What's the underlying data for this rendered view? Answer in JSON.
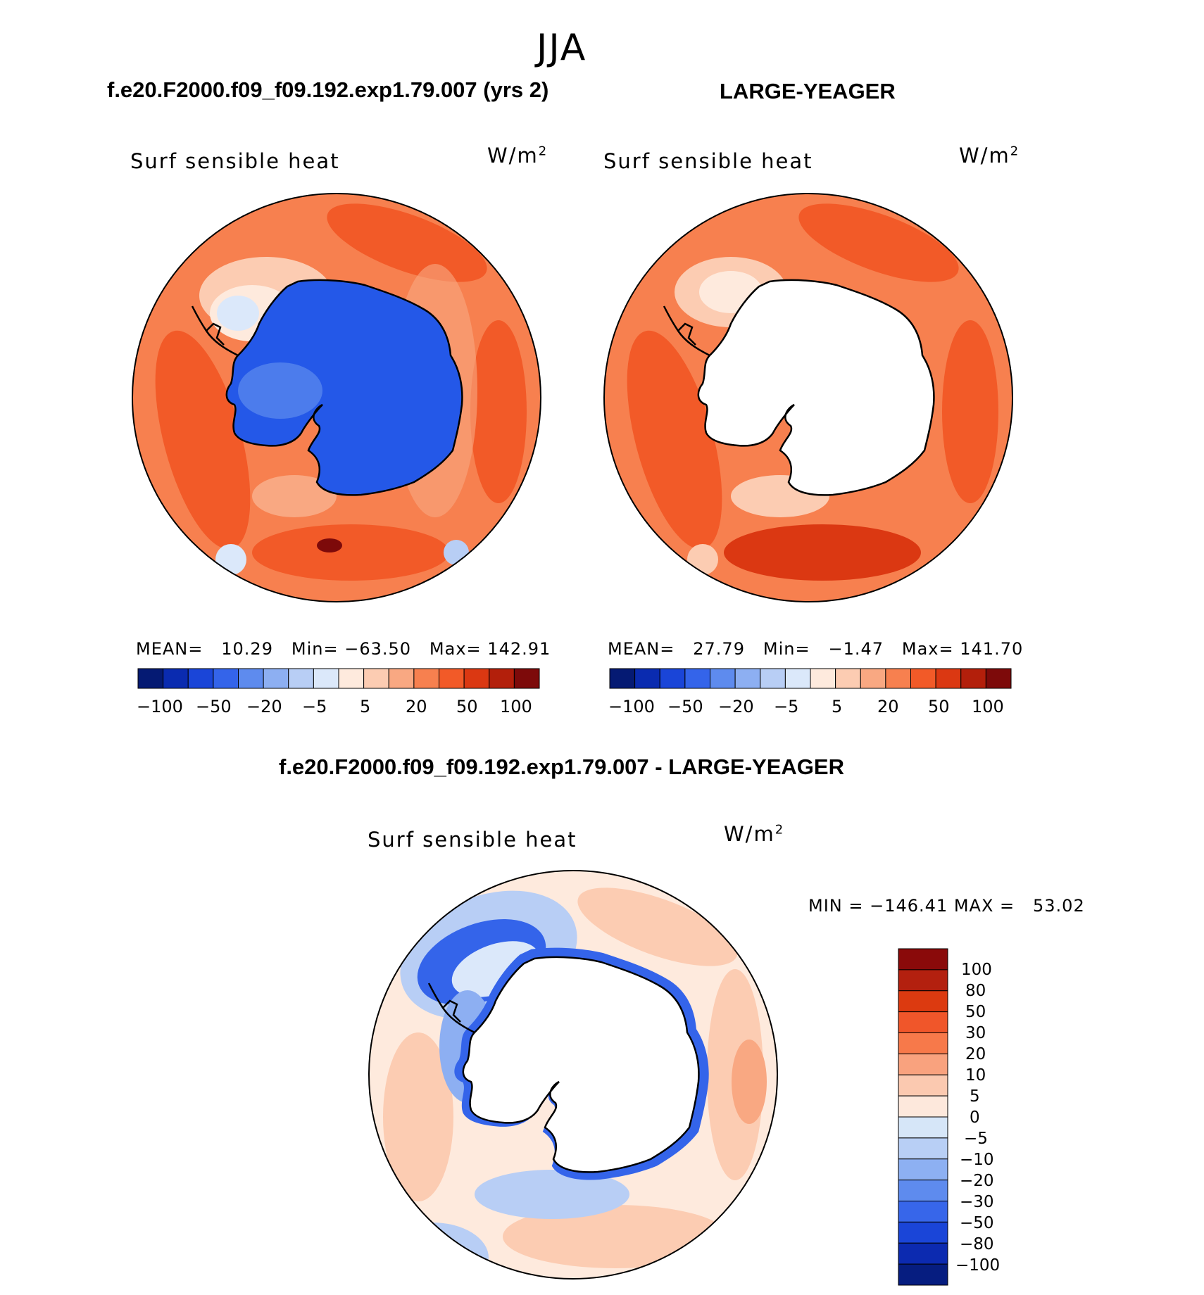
{
  "page": {
    "season_title": "JJA"
  },
  "panels": [
    {
      "case_title": "f.e20.F2000.f09_f09.192.exp1.79.007 (yrs 2)",
      "variable": "Surf sensible heat",
      "units": "W/m",
      "units_sup": "2",
      "stats": {
        "mean_label": "MEAN=",
        "mean": "10.29",
        "min_label": "Min=",
        "min": "−63.50",
        "max_label": "Max=",
        "max": "142.91"
      },
      "land_fill": "#2458e8",
      "colorbar_labels": [
        "−100",
        "−50",
        "−20",
        "−5",
        "5",
        "20",
        "50",
        "100"
      ]
    },
    {
      "case_title": "LARGE-YEAGER",
      "variable": "Surf sensible heat",
      "units": "W/m",
      "units_sup": "2",
      "stats": {
        "mean_label": "MEAN=",
        "mean": "27.79",
        "min_label": "Min=",
        "min": "−1.47",
        "max_label": "Max=",
        "max": "141.70"
      },
      "land_fill": "#ffffff",
      "colorbar_labels": [
        "−100",
        "−50",
        "−20",
        "−5",
        "5",
        "20",
        "50",
        "100"
      ]
    }
  ],
  "diff_panel": {
    "case_title": "f.e20.F2000.f09_f09.192.exp1.79.007 - LARGE-YEAGER",
    "variable": "Surf sensible heat",
    "units": "W/m",
    "units_sup": "2",
    "minmax": "MIN = −146.41 MAX =   53.02",
    "colorbar_levels": [
      "100",
      "80",
      "50",
      "30",
      "20",
      "10",
      "5",
      "0",
      "−5",
      "−10",
      "−20",
      "−30",
      "−50",
      "−80",
      "−100"
    ],
    "colorbar_colors": [
      "#8a0a0a",
      "#b3200f",
      "#dc3a10",
      "#f0562a",
      "#f7794a",
      "#f9a27e",
      "#fbc9b0",
      "#fde8dc",
      "#d6e6f8",
      "#b8cff5",
      "#8db0f2",
      "#5e8bee",
      "#3766ea",
      "#1a45d8",
      "#0c2ab0",
      "#061d80"
    ]
  },
  "panel_colorbar_colors": [
    "#051a73",
    "#0a2bb0",
    "#1a45d8",
    "#3464ea",
    "#5e8bee",
    "#8daff2",
    "#b8cef5",
    "#dbe8fa",
    "#feeadd",
    "#fcccb2",
    "#f9a882",
    "#f7804f",
    "#f25a28",
    "#db3812",
    "#b31f0b",
    "#7d0a0a"
  ]
}
